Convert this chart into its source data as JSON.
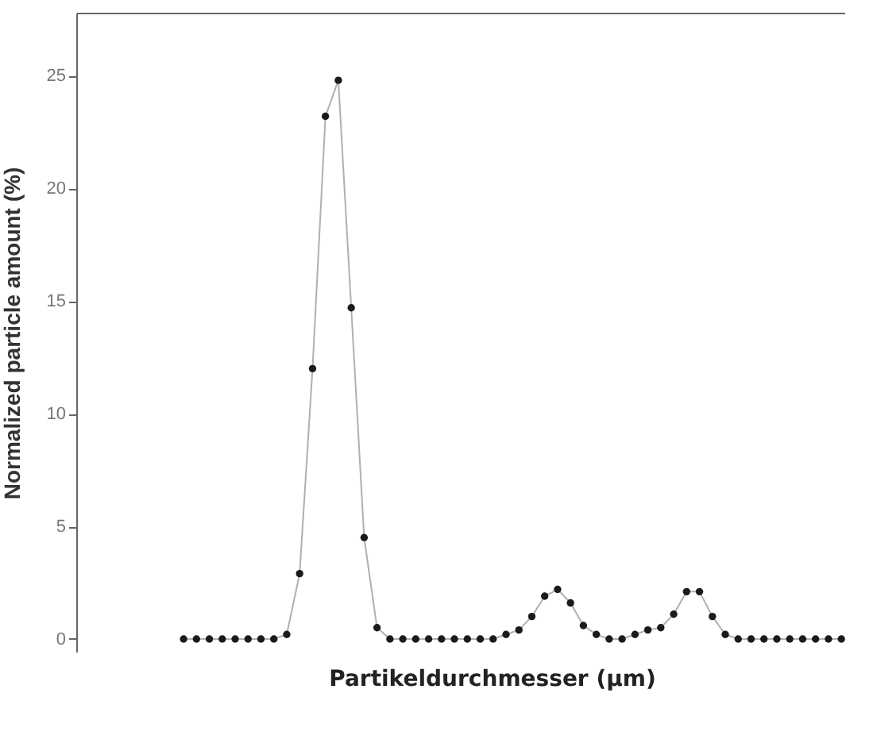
{
  "chart_data": {
    "type": "line",
    "xlabel": "Partikeldurchmesser (µm)",
    "ylabel": "Normalized particle amount (%)",
    "categories": [
      null,
      null,
      null,
      null,
      null,
      null,
      null,
      null,
      null,
      null,
      null,
      null,
      null,
      null,
      null,
      null,
      null,
      null,
      null,
      null,
      null,
      null,
      null,
      null,
      null,
      null,
      null,
      null,
      null,
      null,
      null,
      null,
      null,
      null,
      null,
      null,
      null,
      null,
      null,
      null,
      null,
      null,
      null,
      null,
      null,
      null,
      null,
      null,
      null,
      null,
      null,
      null
    ],
    "series": [
      {
        "color": "#1a1a1a",
        "values": [
          0,
          0,
          0,
          0,
          0,
          0,
          0,
          0,
          0.2,
          2.9,
          12,
          23.2,
          24.8,
          14.7,
          4.5,
          0.5,
          0,
          0,
          0,
          0,
          0,
          0,
          0,
          0,
          0,
          0.2,
          0.4,
          1.0,
          1.9,
          2.2,
          1.6,
          0.6,
          0.2,
          0,
          0,
          0.2,
          0.4,
          0.5,
          1.1,
          2.1,
          2.1,
          1.0,
          0.2,
          0,
          0,
          0,
          0,
          0,
          0,
          0,
          0,
          0
        ]
      }
    ],
    "ylim": [
      -0.6,
      27.8
    ],
    "yticks": [
      0,
      5,
      10,
      15,
      20,
      25
    ],
    "tick_labels": "y",
    "marker": "circle",
    "line_style": "solid"
  }
}
